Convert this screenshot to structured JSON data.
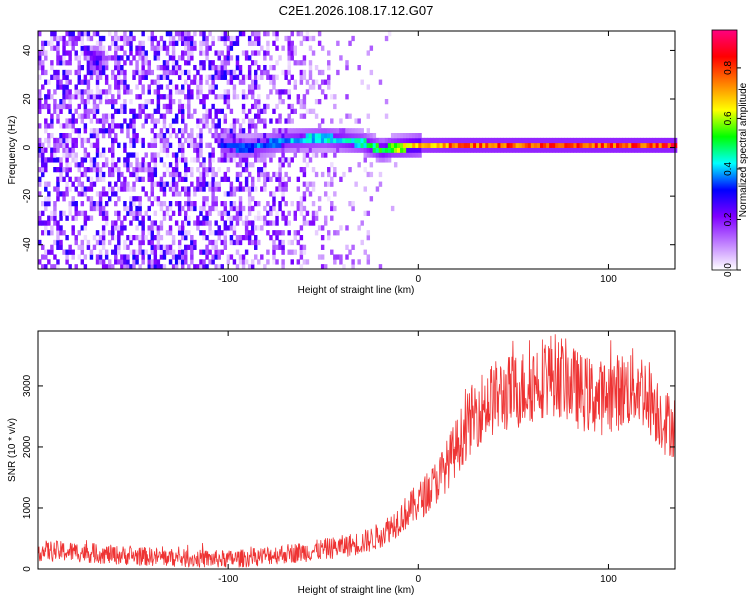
{
  "title": "C2E1.2026.108.17.12.G07",
  "chart_data": [
    {
      "type": "heatmap",
      "xlabel": "Height of straight line (km)",
      "ylabel": "Frequency (Hz)",
      "xlim": [
        -200,
        135
      ],
      "ylim": [
        -50,
        48
      ],
      "x_ticks": [
        -100,
        0,
        100
      ],
      "x_tick_labels": [
        "-100",
        "0",
        "100"
      ],
      "y_ticks": [
        -40,
        -20,
        0,
        20,
        40
      ],
      "y_tick_labels": [
        "-40",
        "-20",
        "0",
        "20",
        "40"
      ],
      "colorbar": {
        "label": "Normalized spectral amplitude",
        "range": [
          0,
          0.95
        ],
        "ticks": [
          0,
          0.2,
          0.4,
          0.6,
          0.8
        ],
        "tick_labels": [
          "0.0",
          "0.2",
          "0.4",
          "0.6",
          "0.8"
        ],
        "colors": [
          "#ffffff",
          "#c080ff",
          "#8000ff",
          "#0000ff",
          "#00ffff",
          "#00ff00",
          "#ffff00",
          "#ff8000",
          "#ff0000",
          "#ff0080"
        ]
      },
      "features": [
        {
          "name": "noise",
          "x_range": [
            -200,
            -10
          ],
          "freq_range": [
            -50,
            48
          ],
          "amplitude_max": 0.3
        },
        {
          "name": "carrier",
          "x_range": [
            -105,
            135
          ],
          "freq": [
            [
              -105,
              0
            ],
            [
              -90,
              -1
            ],
            [
              -70,
              2
            ],
            [
              -50,
              3
            ],
            [
              -40,
              2
            ],
            [
              -30,
              1
            ],
            [
              -20,
              -2
            ],
            [
              -15,
              -1
            ],
            [
              0,
              0
            ],
            [
              135,
              0
            ]
          ],
          "amplitude": [
            [
              -105,
              0.35
            ],
            [
              -60,
              0.45
            ],
            [
              -30,
              0.5
            ],
            [
              -15,
              0.6
            ],
            [
              0,
              0.75
            ],
            [
              20,
              0.85
            ],
            [
              135,
              0.9
            ]
          ]
        },
        {
          "name": "ghost-peak",
          "x": -170,
          "freq": 35,
          "amplitude": 0.25
        }
      ]
    },
    {
      "type": "line",
      "xlabel": "Height of straight line (km)",
      "ylabel": "SNR (10 * v/v)",
      "xlim": [
        -200,
        135
      ],
      "ylim": [
        0,
        3900
      ],
      "x_ticks": [
        -100,
        0,
        100
      ],
      "x_tick_labels": [
        "-100",
        "0",
        "100"
      ],
      "y_ticks": [
        0,
        1000,
        2000,
        3000
      ],
      "y_tick_labels": [
        "0",
        "1000",
        "2000",
        "3000"
      ],
      "color": "#ee3333",
      "series": [
        {
          "x": [
            -200,
            -180,
            -160,
            -140,
            -120,
            -100,
            -90,
            -80,
            -70,
            -60,
            -50,
            -40,
            -30,
            -25,
            -20,
            -15,
            -10,
            -5,
            0,
            5,
            10,
            15,
            20,
            25,
            30,
            35,
            40,
            45,
            50,
            55,
            60,
            65,
            70,
            75,
            80,
            85,
            90,
            95,
            100,
            105,
            110,
            115,
            120,
            125,
            130,
            135
          ],
          "y": [
            300,
            280,
            230,
            200,
            170,
            160,
            180,
            220,
            250,
            280,
            320,
            370,
            430,
            480,
            560,
            680,
            820,
            960,
            1100,
            1250,
            1450,
            1700,
            2000,
            2300,
            2550,
            2700,
            2800,
            2850,
            2900,
            2950,
            3050,
            3150,
            3200,
            3150,
            3050,
            2900,
            2850,
            2800,
            2850,
            2900,
            2950,
            3000,
            2900,
            2650,
            2400,
            2350
          ]
        }
      ]
    }
  ]
}
